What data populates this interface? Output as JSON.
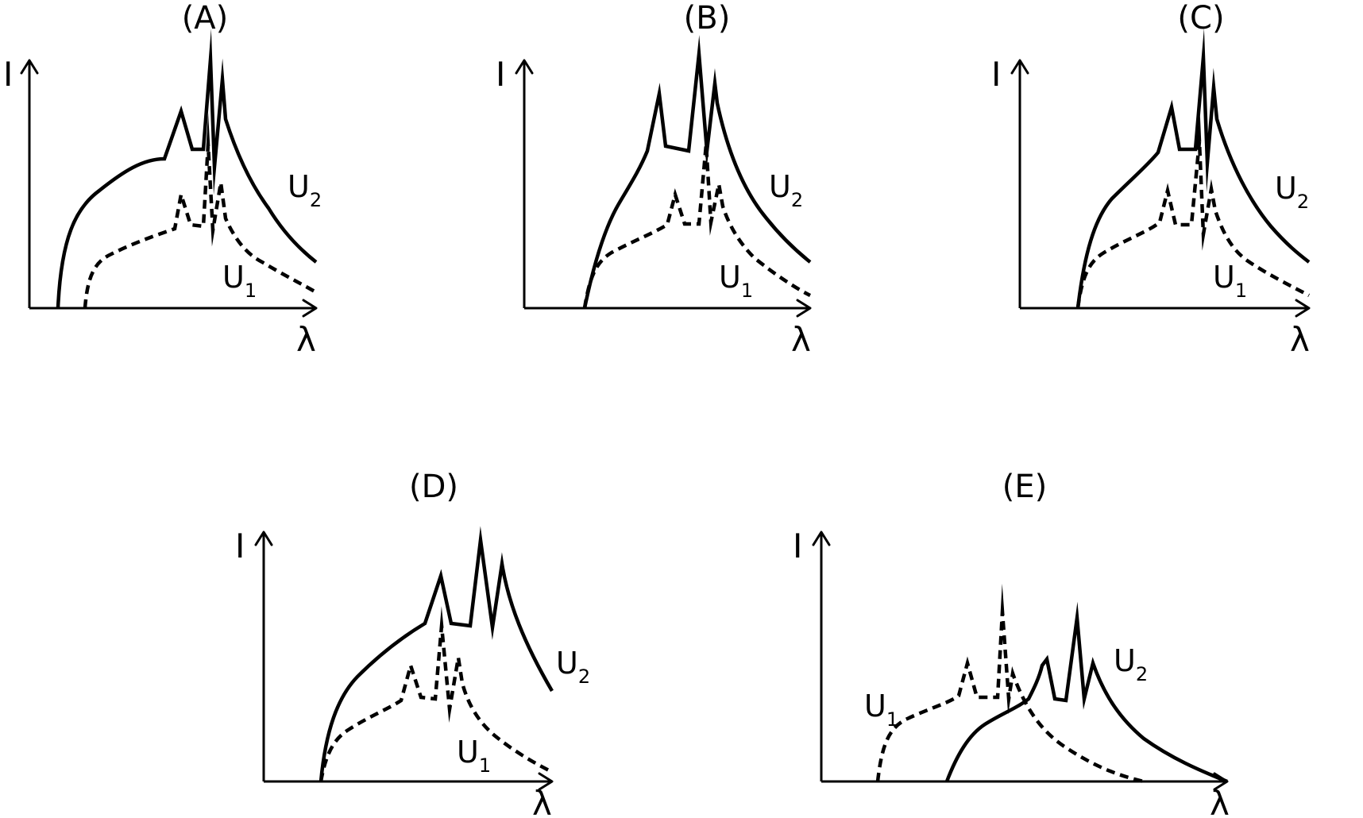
{
  "panels": [
    {
      "id": "A",
      "title": "(A)",
      "y_axis_label": "I",
      "x_axis_label": "λ",
      "curve_upper": {
        "label": "U",
        "sub": "2"
      },
      "curve_lower": {
        "label": "U",
        "sub": "1"
      }
    },
    {
      "id": "B",
      "title": "(B)",
      "y_axis_label": "I",
      "x_axis_label": "λ",
      "curve_upper": {
        "label": "U",
        "sub": "2"
      },
      "curve_lower": {
        "label": "U",
        "sub": "1"
      }
    },
    {
      "id": "C",
      "title": "(C)",
      "y_axis_label": "I",
      "x_axis_label": "λ",
      "curve_upper": {
        "label": "U",
        "sub": "2"
      },
      "curve_lower": {
        "label": "U",
        "sub": "1"
      }
    },
    {
      "id": "D",
      "title": "(D)",
      "y_axis_label": "I",
      "x_axis_label": "λ",
      "curve_upper": {
        "label": "U",
        "sub": "2"
      },
      "curve_lower": {
        "label": "U",
        "sub": "1"
      }
    },
    {
      "id": "E",
      "title": "(E)",
      "y_axis_label": "I",
      "x_axis_label": "λ",
      "curve_upper": {
        "label": "U",
        "sub": "2"
      },
      "curve_lower": {
        "label": "U",
        "sub": "1"
      }
    }
  ]
}
